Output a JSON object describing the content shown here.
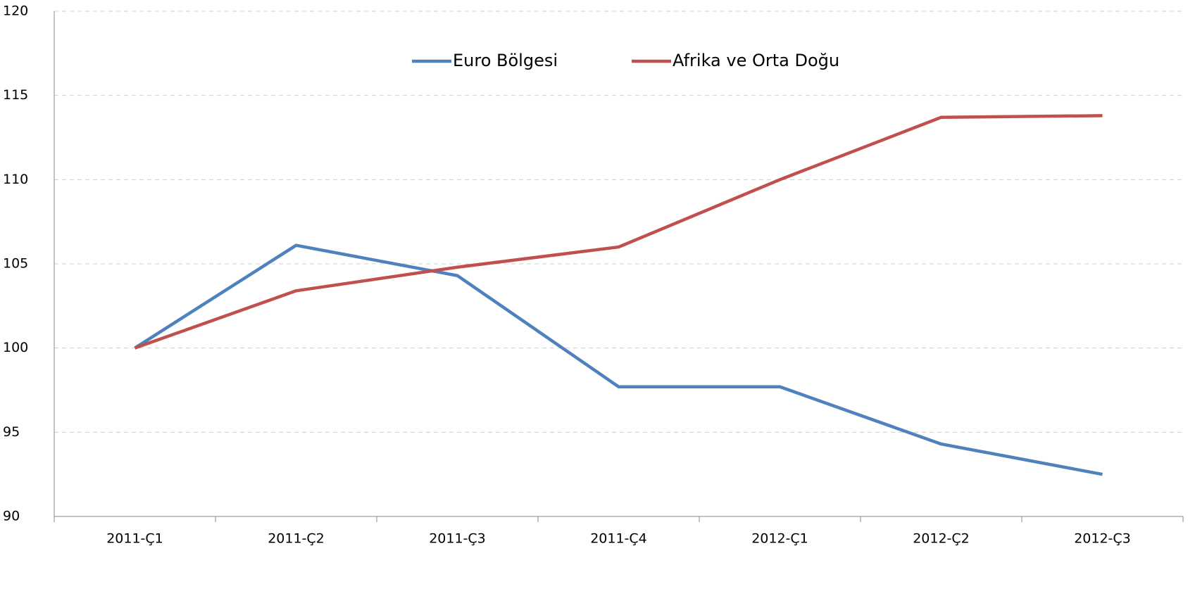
{
  "chart_data": {
    "type": "line",
    "categories": [
      "2011-Ç1",
      "2011-Ç2",
      "2011-Ç3",
      "2011-Ç4",
      "2012-Ç1",
      "2012-Ç2",
      "2012-Ç3"
    ],
    "series": [
      {
        "name": "Euro Bölgesi",
        "color": "#4f81bd",
        "values": [
          100,
          106.1,
          104.3,
          97.7,
          97.7,
          94.3,
          92.5
        ]
      },
      {
        "name": "Afrika ve Orta Doğu",
        "color": "#c0504d",
        "values": [
          100,
          103.4,
          104.8,
          106,
          110,
          113.7,
          113.8
        ]
      }
    ],
    "ylim": [
      90,
      120
    ],
    "yticks": [
      90,
      95,
      100,
      105,
      110,
      115,
      120
    ],
    "grid": true,
    "legend": "top"
  }
}
